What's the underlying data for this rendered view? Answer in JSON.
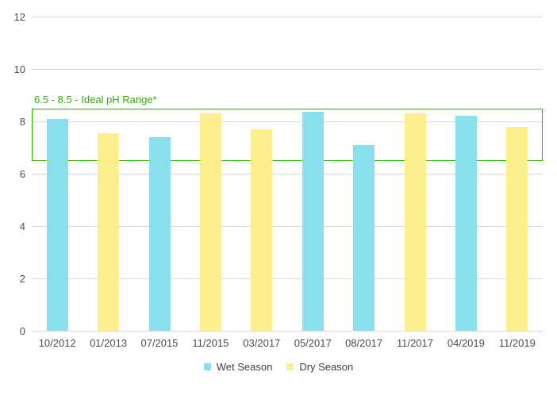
{
  "chart_data": {
    "type": "bar",
    "title": "",
    "xlabel": "",
    "ylabel": "",
    "categories": [
      "10/2012",
      "01/2013",
      "07/2015",
      "11/2015",
      "03/2017",
      "05/2017",
      "08/2017",
      "11/2017",
      "04/2019",
      "11/2019"
    ],
    "series": [
      {
        "name": "Wet Season",
        "color": "#8adfee",
        "values": [
          8.1,
          null,
          7.4,
          null,
          null,
          8.35,
          7.1,
          null,
          8.2,
          null
        ]
      },
      {
        "name": "Dry Season",
        "color": "#fcee8c",
        "values": [
          null,
          7.55,
          null,
          8.3,
          7.7,
          null,
          null,
          8.3,
          null,
          7.8
        ]
      }
    ],
    "ylim": [
      0,
      12
    ],
    "yticks": [
      0,
      2,
      4,
      6,
      8,
      10,
      12
    ],
    "grid": true,
    "legend_position": "bottom",
    "annotation": {
      "label": "6.5 - 8.5 - Ideal pH Range*",
      "band": [
        6.5,
        8.5
      ],
      "color": "#2db200"
    }
  },
  "colors": {
    "grid": "#d9d9d9",
    "axis_text": "#4d4d4d",
    "legend_text": "#404040",
    "background": "#ffffff"
  }
}
